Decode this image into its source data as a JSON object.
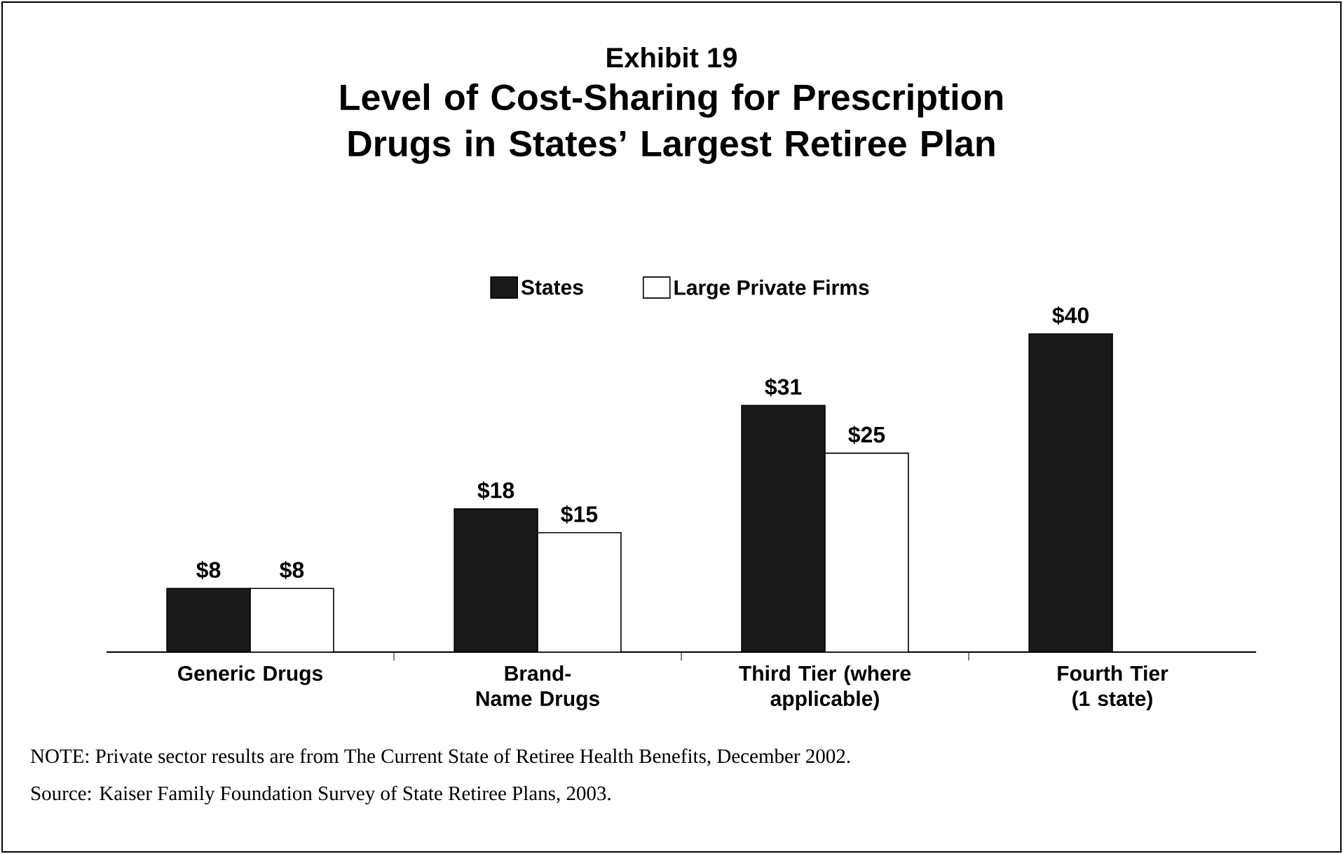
{
  "chart_data": {
    "type": "bar",
    "subtitle": "Exhibit 19",
    "title": "Level of Cost-Sharing for Prescription Drugs in States’ Largest Retiree Plan",
    "categories": [
      "Generic Drugs",
      "Brand-Name Drugs",
      "Third Tier (where applicable)",
      "Fourth Tier (1 state)"
    ],
    "series": [
      {
        "name": "States",
        "color": "#1a1a1a",
        "values": [
          8,
          18,
          31,
          40
        ],
        "value_labels": [
          "$8",
          "$18",
          "$31",
          "$40"
        ]
      },
      {
        "name": "Large Private Firms",
        "color": "#ffffff",
        "values": [
          8,
          15,
          25,
          null
        ],
        "value_labels": [
          "$8",
          "$15",
          "$25",
          null
        ]
      }
    ],
    "legend": "top",
    "tick_labels": "x",
    "annotations": [
      "NOTE: Private sector results are from The Current State of Retiree Health Benefits, December 2002.",
      "Source: Kaiser Family Foundation Survey of State Retiree Plans, 2003."
    ]
  }
}
